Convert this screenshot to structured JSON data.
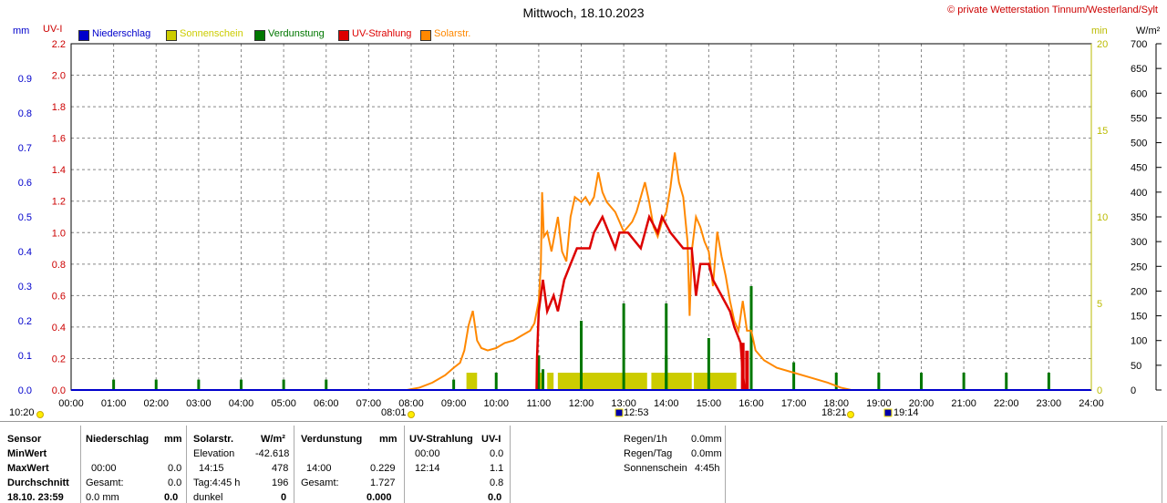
{
  "header": {
    "title": "Mittwoch, 18.10.2023",
    "copyright": "© private Wetterstation Tinnum/Westerland/Sylt",
    "unit_mm": "mm",
    "unit_uv": "UV-I",
    "unit_min": "min",
    "unit_wm2": "W/m²"
  },
  "legend": [
    {
      "label": "Niederschlag",
      "color": "#0000cc"
    },
    {
      "label": "Sonnenschein",
      "color": "#cccc00"
    },
    {
      "label": "Verdunstung",
      "color": "#007700"
    },
    {
      "label": "UV-Strahlung",
      "color": "#dd0000"
    },
    {
      "label": "Solarstr.",
      "color": "#ff8800"
    }
  ],
  "colors": {
    "mm_axis": "#0000cc",
    "uv_axis": "#cc0000",
    "min_axis": "#bbbb00",
    "solar_axis": "#000000",
    "sunshine": "#cccc00",
    "evaporation": "#007700",
    "uv": "#dd0000",
    "solar": "#ff8800"
  },
  "chart_data": {
    "type": "line",
    "title": "Mittwoch, 18.10.2023",
    "x_ticks": [
      "00:00",
      "01:00",
      "02:00",
      "03:00",
      "04:00",
      "05:00",
      "06:00",
      "07:00",
      "08:00",
      "09:00",
      "10:00",
      "11:00",
      "12:00",
      "13:00",
      "14:00",
      "15:00",
      "16:00",
      "17:00",
      "18:00",
      "19:00",
      "20:00",
      "21:00",
      "22:00",
      "23:00",
      "24:00"
    ],
    "x_range_hours": [
      0,
      24
    ],
    "axes": {
      "mm": {
        "label": "mm",
        "range": [
          0,
          1.0
        ],
        "ticks": [
          "0.0",
          "0.1",
          "0.2",
          "0.3",
          "0.4",
          "0.5",
          "0.6",
          "0.7",
          "0.8",
          "0.9"
        ]
      },
      "uv": {
        "label": "UV-I",
        "range": [
          0,
          2.2
        ],
        "ticks": [
          "0.0",
          "0.2",
          "0.4",
          "0.6",
          "0.8",
          "1.0",
          "1.2",
          "1.4",
          "1.6",
          "1.8",
          "2.0",
          "2.2"
        ]
      },
      "min": {
        "label": "min",
        "range": [
          0,
          20
        ],
        "ticks": [
          "0",
          "5",
          "10",
          "15",
          "20"
        ]
      },
      "solar": {
        "label": "W/m²",
        "range": [
          0,
          700
        ],
        "ticks": [
          "0",
          "50",
          "100",
          "150",
          "200",
          "250",
          "300",
          "350",
          "400",
          "450",
          "500",
          "550",
          "600",
          "650",
          "700"
        ]
      }
    },
    "grid": true,
    "annotations": {
      "dawn": "08:01",
      "dusk": "18:21",
      "solar_noon": "12:53",
      "sunset_mark": "19:14",
      "left_time": "10:20"
    },
    "series": [
      {
        "name": "Solarstr.",
        "axis": "solar",
        "points": [
          [
            7.9,
            0
          ],
          [
            8.2,
            5
          ],
          [
            8.5,
            15
          ],
          [
            8.8,
            30
          ],
          [
            9.0,
            45
          ],
          [
            9.15,
            55
          ],
          [
            9.25,
            80
          ],
          [
            9.35,
            130
          ],
          [
            9.45,
            160
          ],
          [
            9.55,
            100
          ],
          [
            9.65,
            85
          ],
          [
            9.8,
            80
          ],
          [
            10.0,
            85
          ],
          [
            10.2,
            95
          ],
          [
            10.4,
            100
          ],
          [
            10.6,
            110
          ],
          [
            10.8,
            120
          ],
          [
            10.9,
            135
          ],
          [
            11.0,
            180
          ],
          [
            11.05,
            250
          ],
          [
            11.08,
            400
          ],
          [
            11.12,
            310
          ],
          [
            11.2,
            320
          ],
          [
            11.3,
            280
          ],
          [
            11.45,
            350
          ],
          [
            11.55,
            280
          ],
          [
            11.65,
            260
          ],
          [
            11.75,
            350
          ],
          [
            11.85,
            390
          ],
          [
            12.0,
            380
          ],
          [
            12.1,
            390
          ],
          [
            12.2,
            375
          ],
          [
            12.3,
            390
          ],
          [
            12.4,
            440
          ],
          [
            12.5,
            400
          ],
          [
            12.6,
            380
          ],
          [
            12.7,
            370
          ],
          [
            12.8,
            360
          ],
          [
            12.9,
            340
          ],
          [
            13.0,
            320
          ],
          [
            13.1,
            330
          ],
          [
            13.2,
            340
          ],
          [
            13.3,
            360
          ],
          [
            13.4,
            390
          ],
          [
            13.5,
            420
          ],
          [
            13.6,
            380
          ],
          [
            13.7,
            330
          ],
          [
            13.8,
            310
          ],
          [
            13.9,
            340
          ],
          [
            14.0,
            360
          ],
          [
            14.1,
            410
          ],
          [
            14.2,
            480
          ],
          [
            14.3,
            420
          ],
          [
            14.4,
            390
          ],
          [
            14.5,
            300
          ],
          [
            14.55,
            150
          ],
          [
            14.6,
            280
          ],
          [
            14.7,
            350
          ],
          [
            14.8,
            330
          ],
          [
            14.9,
            300
          ],
          [
            15.0,
            280
          ],
          [
            15.1,
            210
          ],
          [
            15.2,
            320
          ],
          [
            15.3,
            270
          ],
          [
            15.4,
            230
          ],
          [
            15.5,
            180
          ],
          [
            15.6,
            140
          ],
          [
            15.7,
            120
          ],
          [
            15.8,
            180
          ],
          [
            15.9,
            120
          ],
          [
            16.0,
            120
          ],
          [
            16.1,
            80
          ],
          [
            16.3,
            60
          ],
          [
            16.6,
            45
          ],
          [
            17.0,
            35
          ],
          [
            17.4,
            25
          ],
          [
            17.8,
            15
          ],
          [
            18.1,
            5
          ],
          [
            18.35,
            0
          ]
        ]
      },
      {
        "name": "UV-Strahlung",
        "axis": "uv",
        "points": [
          [
            10.95,
            0
          ],
          [
            10.96,
            0.2
          ],
          [
            11.0,
            0.5
          ],
          [
            11.1,
            0.7
          ],
          [
            11.2,
            0.5
          ],
          [
            11.35,
            0.6
          ],
          [
            11.45,
            0.5
          ],
          [
            11.6,
            0.7
          ],
          [
            11.75,
            0.8
          ],
          [
            11.9,
            0.9
          ],
          [
            12.2,
            0.9
          ],
          [
            12.3,
            1.0
          ],
          [
            12.5,
            1.1
          ],
          [
            12.65,
            1.0
          ],
          [
            12.8,
            0.9
          ],
          [
            12.9,
            1.0
          ],
          [
            13.1,
            1.0
          ],
          [
            13.4,
            0.9
          ],
          [
            13.5,
            1.0
          ],
          [
            13.6,
            1.1
          ],
          [
            13.8,
            1.0
          ],
          [
            13.9,
            1.1
          ],
          [
            14.1,
            1.0
          ],
          [
            14.4,
            0.9
          ],
          [
            14.6,
            0.9
          ],
          [
            14.7,
            0.6
          ],
          [
            14.8,
            0.8
          ],
          [
            15.0,
            0.8
          ],
          [
            15.1,
            0.7
          ],
          [
            15.3,
            0.6
          ],
          [
            15.5,
            0.5
          ],
          [
            15.6,
            0.4
          ],
          [
            15.75,
            0.3
          ],
          [
            15.8,
            0.1
          ],
          [
            15.85,
            0
          ]
        ]
      }
    ],
    "sunshine_bars": [
      [
        9.3,
        9.55,
        1.0
      ],
      [
        10.95,
        11.1,
        1.0
      ],
      [
        11.2,
        11.35,
        1.0
      ],
      [
        11.45,
        13.55,
        1.0
      ],
      [
        13.65,
        14.6,
        1.0
      ],
      [
        14.65,
        15.65,
        1.0
      ]
    ],
    "evaporation_bars": [
      [
        1.0,
        0.03
      ],
      [
        2.0,
        0.03
      ],
      [
        3.0,
        0.03
      ],
      [
        4.0,
        0.03
      ],
      [
        5.0,
        0.03
      ],
      [
        6.0,
        0.03
      ],
      [
        9.0,
        0.03
      ],
      [
        10.0,
        0.05
      ],
      [
        11.0,
        0.1
      ],
      [
        11.1,
        0.06
      ],
      [
        12.0,
        0.2
      ],
      [
        13.0,
        0.25
      ],
      [
        14.0,
        0.25
      ],
      [
        14.0,
        0.1
      ],
      [
        15.0,
        0.15
      ],
      [
        16.0,
        0.3
      ],
      [
        17.0,
        0.08
      ],
      [
        18.0,
        0.05
      ],
      [
        19.0,
        0.05
      ],
      [
        20.0,
        0.05
      ],
      [
        21.0,
        0.05
      ],
      [
        22.0,
        0.05
      ],
      [
        23.0,
        0.05
      ]
    ],
    "uv_spikes": [
      [
        15.8,
        0.3
      ],
      [
        15.9,
        0.25
      ]
    ]
  },
  "table": {
    "col1": {
      "h": "Sensor",
      "r1": "MinWert",
      "r2": "MaxWert",
      "r3": "Durchschnitt",
      "r4": "18.10. 23:59"
    },
    "nieder": {
      "h": "Niederschlag",
      "unit": "mm",
      "r2a": "00:00",
      "r2b": "0.0",
      "r1b": "0.0",
      "r3a": "Gesamt:",
      "r3b": "0.0",
      "r4a": "0.0 mm",
      "r4b": "0.0"
    },
    "solar": {
      "h": "Solarstr.",
      "unit": "W/m²",
      "r1a": "Elevation",
      "r1b": "-42.618",
      "r2a": "14:15",
      "r2b": "478",
      "r3a": "Tag:4:45 h",
      "r3b": "196",
      "r4a": "dunkel",
      "r4b": "0"
    },
    "verd": {
      "h": "Verdunstung",
      "unit": "mm",
      "r2a": "14:00",
      "r2b": "0.229",
      "r3a": "Gesamt:",
      "r3b": "1.727",
      "r4b": "0.000"
    },
    "uv": {
      "h": "UV-Strahlung",
      "unit": "UV-I",
      "r1a": "00:00",
      "r1b": "0.0",
      "r2a": "12:14",
      "r2b": "1.1",
      "r3b": "0.8",
      "r4b": "0.0"
    },
    "extra": {
      "l1": "Regen/1h",
      "v1": "0.0mm",
      "l2": "Regen/Tag",
      "v2": "0.0mm",
      "l3": "Sonnenschein",
      "v3": "4:45h"
    }
  }
}
